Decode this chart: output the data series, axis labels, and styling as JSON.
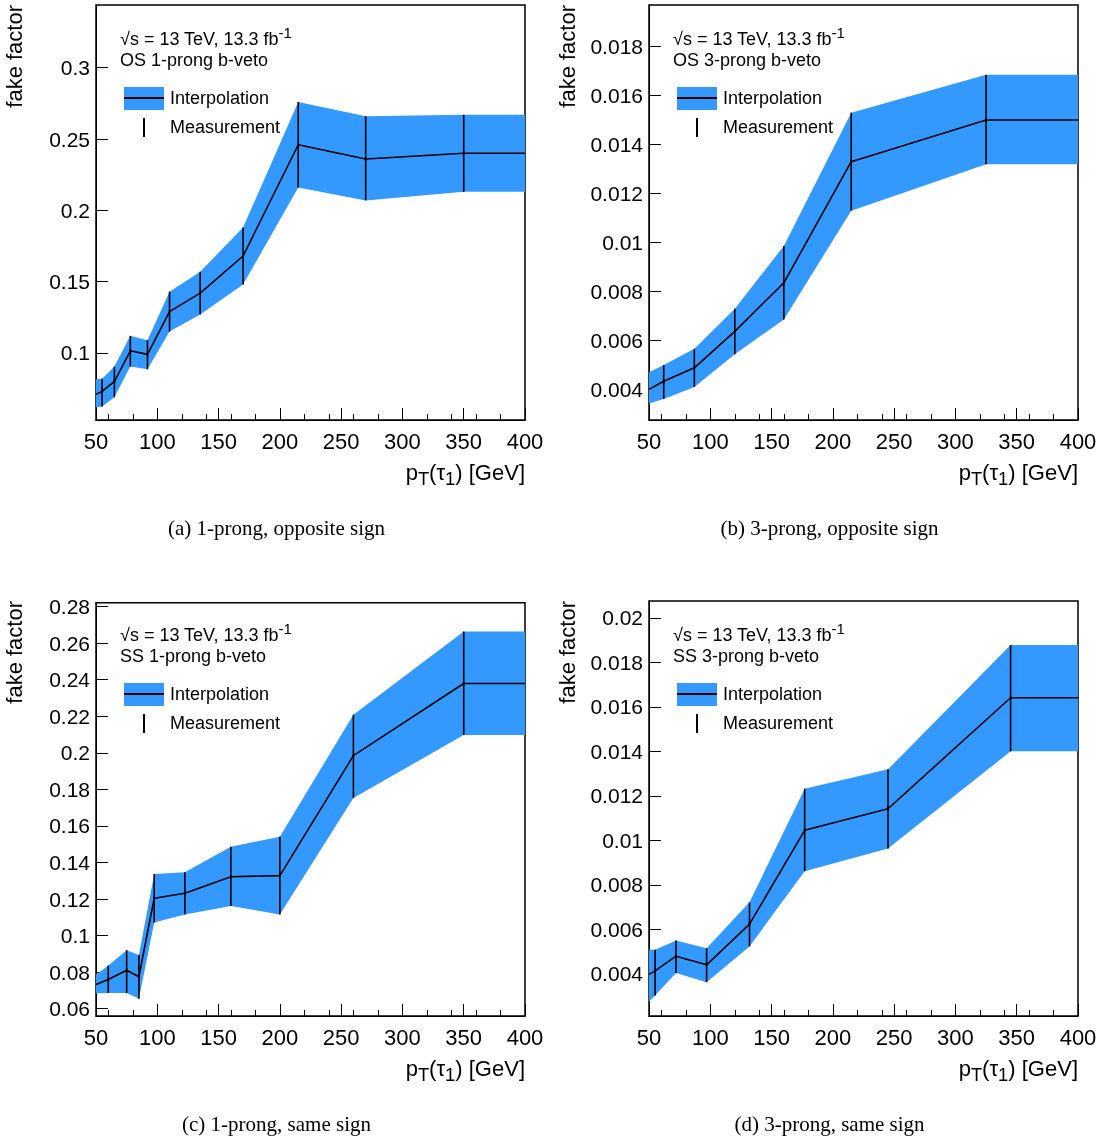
{
  "chart_data": [
    {
      "type": "line",
      "title": "(a) 1-prong, opposite sign",
      "xlabel": "p$_{T}$(τ$_{1}$) [GeV]",
      "ylabel": "fake factor",
      "annotations": [
        "√s = 13 TeV, 13.3 fb$^{-1}$",
        "OS 1-prong b-veto"
      ],
      "legend": "top left",
      "xlim": [
        50,
        400
      ],
      "xticks": [
        50,
        100,
        150,
        200,
        250,
        300,
        350,
        400
      ],
      "ylim": [
        0.053,
        0.344
      ],
      "yticks": [
        0.1,
        0.15,
        0.2,
        0.25,
        0.3
      ],
      "series": [
        {
          "name": "Interpolation",
          "color": "#000000",
          "line_style": "solid",
          "x": [
            50,
            55,
            65,
            78,
            92,
            110,
            135,
            170,
            215,
            270,
            350,
            400
          ],
          "values": [
            0.071,
            0.073,
            0.08,
            0.1015,
            0.099,
            0.129,
            0.142,
            0.168,
            0.246,
            0.236,
            0.24,
            0.24
          ],
          "lower": [
            0.062,
            0.0625,
            0.069,
            0.0905,
            0.0885,
            0.115,
            0.127,
            0.148,
            0.216,
            0.207,
            0.213,
            0.213
          ],
          "upper": [
            0.0815,
            0.082,
            0.0905,
            0.112,
            0.109,
            0.143,
            0.157,
            0.188,
            0.276,
            0.266,
            0.267,
            0.267
          ]
        },
        {
          "name": "Measurement",
          "type": "scatter",
          "color": "#000000",
          "x": [
            55,
            65,
            78,
            92,
            110,
            135,
            170,
            215,
            270,
            350
          ],
          "values": [
            0.073,
            0.08,
            0.1015,
            0.099,
            0.129,
            0.142,
            0.168,
            0.246,
            0.236,
            0.24
          ],
          "errors": [
            [
              0.0625,
              0.082
            ],
            [
              0.069,
              0.0905
            ],
            [
              0.0905,
              0.112
            ],
            [
              0.0885,
              0.109
            ],
            [
              0.115,
              0.143
            ],
            [
              0.127,
              0.157
            ],
            [
              0.148,
              0.188
            ],
            [
              0.216,
              0.276
            ],
            [
              0.207,
              0.266
            ],
            [
              0.213,
              0.267
            ]
          ]
        }
      ]
    },
    {
      "type": "line",
      "title": "(b) 3-prong, opposite sign",
      "xlabel": "p$_{T}$(τ$_{1}$) [GeV]",
      "ylabel": "fake factor",
      "annotations": [
        "√s = 13 TeV, 13.3 fb$^{-1}$",
        "OS 3-prong b-veto"
      ],
      "legend": "top left",
      "xlim": [
        50,
        400
      ],
      "xticks": [
        50,
        100,
        150,
        200,
        250,
        300,
        350,
        400
      ],
      "ylim": [
        0.00275,
        0.0197
      ],
      "yticks": [
        0.004,
        0.006,
        0.008,
        0.01,
        0.012,
        0.014,
        0.016,
        0.018
      ],
      "series": [
        {
          "name": "Interpolation",
          "color": "#000000",
          "line_style": "solid",
          "x": [
            50,
            62,
            87,
            120,
            160,
            215,
            325,
            400
          ],
          "values": [
            0.004,
            0.00433,
            0.00488,
            0.00637,
            0.00835,
            0.0133,
            0.015,
            0.015
          ],
          "lower": [
            0.00342,
            0.00361,
            0.0041,
            0.00544,
            0.00685,
            0.0113,
            0.0132,
            0.0132
          ],
          "upper": [
            0.0047,
            0.005,
            0.00566,
            0.00729,
            0.00986,
            0.0153,
            0.01685,
            0.01685
          ]
        },
        {
          "name": "Measurement",
          "type": "scatter",
          "color": "#000000",
          "x": [
            62,
            87,
            120,
            160,
            215,
            325
          ],
          "values": [
            0.00433,
            0.00488,
            0.00637,
            0.00835,
            0.0133,
            0.015
          ],
          "errors": [
            [
              0.00361,
              0.005
            ],
            [
              0.0041,
              0.00566
            ],
            [
              0.00544,
              0.00729
            ],
            [
              0.00685,
              0.00986
            ],
            [
              0.0113,
              0.0153
            ],
            [
              0.0132,
              0.01685
            ]
          ]
        }
      ]
    },
    {
      "type": "line",
      "title": "(c) 1-prong, same sign",
      "xlabel": "p$_{T}$(τ$_{1}$) [GeV]",
      "ylabel": "fake factor",
      "annotations": [
        "√s = 13 TeV, 13.3 fb$^{-1}$",
        "SS 1-prong b-veto"
      ],
      "legend": "top left",
      "xlim": [
        50,
        400
      ],
      "xticks": [
        50,
        100,
        150,
        200,
        250,
        300,
        350,
        400
      ],
      "ylim": [
        0.056,
        0.282
      ],
      "yticks": [
        0.06,
        0.08,
        0.1,
        0.12,
        0.14,
        0.16,
        0.18,
        0.2,
        0.22,
        0.24,
        0.26,
        0.28
      ],
      "series": [
        {
          "name": "Interpolation",
          "color": "#000000",
          "line_style": "solid",
          "x": [
            50,
            60,
            75,
            85,
            97.5,
            122.5,
            160,
            200,
            260,
            350,
            400
          ],
          "values": [
            0.0732,
            0.076,
            0.081,
            0.0775,
            0.1204,
            0.1231,
            0.1322,
            0.1328,
            0.1984,
            0.2379,
            0.2379
          ],
          "lower": [
            0.0684,
            0.0686,
            0.0686,
            0.0655,
            0.1071,
            0.1115,
            0.1162,
            0.1115,
            0.1753,
            0.2097,
            0.2097
          ],
          "upper": [
            0.0785,
            0.0836,
            0.092,
            0.0894,
            0.1337,
            0.1347,
            0.1486,
            0.1541,
            0.2208,
            0.2663,
            0.2663
          ]
        },
        {
          "name": "Measurement",
          "type": "scatter",
          "color": "#000000",
          "x": [
            60,
            75,
            85,
            97.5,
            122.5,
            160,
            200,
            260,
            350
          ],
          "values": [
            0.076,
            0.081,
            0.0775,
            0.1204,
            0.1231,
            0.1322,
            0.1328,
            0.1984,
            0.2379
          ],
          "errors": [
            [
              0.0686,
              0.0836
            ],
            [
              0.0686,
              0.092
            ],
            [
              0.0655,
              0.0894
            ],
            [
              0.1071,
              0.1337
            ],
            [
              0.1115,
              0.1347
            ],
            [
              0.1162,
              0.1486
            ],
            [
              0.1115,
              0.1541
            ],
            [
              0.1753,
              0.2208
            ],
            [
              0.2097,
              0.2663
            ]
          ]
        }
      ]
    },
    {
      "type": "line",
      "title": "(d) 3-prong, same sign",
      "xlabel": "p$_{T}$(τ$_{1}$) [GeV]",
      "ylabel": "fake factor",
      "annotations": [
        "√s = 13 TeV, 13.3 fb$^{-1}$",
        "SS 3-prong b-veto"
      ],
      "legend": "top left",
      "xlim": [
        50,
        400
      ],
      "xticks": [
        50,
        100,
        150,
        200,
        250,
        300,
        350,
        400
      ],
      "ylim": [
        0.0021,
        0.02076
      ],
      "yticks": [
        0.004,
        0.006,
        0.008,
        0.01,
        0.012,
        0.014,
        0.016,
        0.018,
        0.02
      ],
      "series": [
        {
          "name": "Interpolation",
          "color": "#000000",
          "line_style": "solid",
          "x": [
            50,
            55,
            72,
            97,
            132,
            177,
            245,
            345,
            400
          ],
          "values": [
            0.00397,
            0.00413,
            0.00479,
            0.0044,
            0.00623,
            0.01045,
            0.01142,
            0.01641,
            0.01641
          ],
          "lower": [
            0.00274,
            0.00302,
            0.00403,
            0.00362,
            0.00523,
            0.00861,
            0.00963,
            0.014,
            0.014
          ],
          "upper": [
            0.00508,
            0.00508,
            0.0055,
            0.00515,
            0.00721,
            0.01232,
            0.01319,
            0.01878,
            0.01878
          ]
        },
        {
          "name": "Measurement",
          "type": "scatter",
          "color": "#000000",
          "x": [
            55,
            72,
            97,
            132,
            177,
            245,
            345
          ],
          "values": [
            0.00413,
            0.00479,
            0.0044,
            0.00623,
            0.01045,
            0.01142,
            0.01641
          ],
          "errors": [
            [
              0.00302,
              0.00508
            ],
            [
              0.00403,
              0.0055
            ],
            [
              0.00362,
              0.00515
            ],
            [
              0.00523,
              0.00721
            ],
            [
              0.00861,
              0.01232
            ],
            [
              0.00963,
              0.01319
            ],
            [
              0.014,
              0.01878
            ]
          ]
        }
      ]
    }
  ]
}
